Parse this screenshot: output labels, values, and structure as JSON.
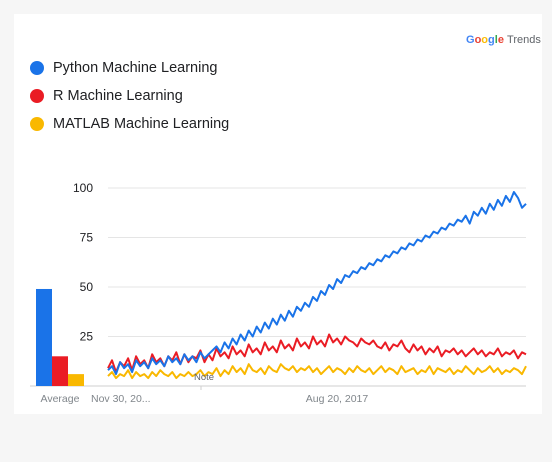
{
  "brand": {
    "logo_text": "Google",
    "product_text": "Trends"
  },
  "colors": {
    "python": "#1a73e8",
    "r": "#ea1c24",
    "matlab": "#f9b800",
    "grid": "#e5e5e5"
  },
  "chart_data": {
    "type": "line",
    "y_ticks": [
      "100",
      "75",
      "50",
      "25"
    ],
    "ylim": [
      0,
      100
    ],
    "x_tick_labels": [
      "Nov 30, 20...",
      "Aug 20, 2017"
    ],
    "average_label": "Average",
    "note_label": "Note",
    "legend_position": "top-left",
    "grid": true,
    "averages": [
      {
        "name": "Python Machine Learning",
        "value": 49
      },
      {
        "name": "R Machine Learning",
        "value": 15
      },
      {
        "name": "MATLAB Machine Learning",
        "value": 6
      }
    ],
    "series": [
      {
        "name": "Python Machine Learning",
        "values": [
          8,
          10,
          6,
          12,
          9,
          11,
          7,
          13,
          10,
          12,
          9,
          14,
          11,
          13,
          10,
          15,
          12,
          14,
          11,
          16,
          13,
          15,
          12,
          17,
          14,
          16,
          18,
          20,
          17,
          22,
          19,
          24,
          21,
          26,
          23,
          28,
          25,
          30,
          27,
          32,
          29,
          34,
          31,
          36,
          33,
          38,
          35,
          40,
          38,
          42,
          40,
          45,
          43,
          48,
          46,
          51,
          49,
          54,
          52,
          56,
          55,
          58,
          57,
          60,
          59,
          62,
          61,
          64,
          63,
          66,
          65,
          68,
          67,
          70,
          69,
          72,
          71,
          74,
          73,
          76,
          75,
          78,
          77,
          80,
          79,
          82,
          81,
          84,
          83,
          86,
          82,
          88,
          86,
          90,
          87,
          92,
          89,
          94,
          91,
          96,
          93,
          98,
          95,
          90,
          92
        ]
      },
      {
        "name": "R Machine Learning",
        "values": [
          9,
          13,
          7,
          12,
          10,
          14,
          8,
          15,
          11,
          13,
          9,
          16,
          12,
          14,
          10,
          15,
          13,
          17,
          11,
          16,
          12,
          15,
          14,
          18,
          12,
          16,
          13,
          19,
          15,
          17,
          14,
          20,
          16,
          18,
          15,
          21,
          17,
          19,
          16,
          22,
          18,
          20,
          17,
          23,
          19,
          21,
          18,
          24,
          20,
          22,
          19,
          25,
          21,
          23,
          20,
          26,
          22,
          24,
          21,
          25,
          23,
          22,
          20,
          24,
          22,
          21,
          23,
          20,
          19,
          22,
          18,
          21,
          20,
          23,
          19,
          17,
          21,
          18,
          20,
          16,
          19,
          17,
          20,
          15,
          18,
          17,
          19,
          16,
          18,
          15,
          17,
          19,
          16,
          18,
          15,
          17,
          16,
          19,
          15,
          17,
          16,
          18,
          14,
          17,
          16
        ]
      },
      {
        "name": "MATLAB Machine Learning",
        "values": [
          5,
          7,
          4,
          6,
          5,
          8,
          4,
          7,
          5,
          6,
          4,
          7,
          5,
          8,
          6,
          5,
          7,
          4,
          6,
          5,
          7,
          5,
          6,
          8,
          5,
          7,
          6,
          9,
          5,
          8,
          6,
          10,
          7,
          9,
          6,
          11,
          8,
          7,
          9,
          6,
          10,
          8,
          7,
          11,
          9,
          8,
          10,
          7,
          9,
          8,
          10,
          7,
          9,
          6,
          8,
          10,
          7,
          9,
          8,
          6,
          9,
          7,
          10,
          8,
          7,
          9,
          6,
          8,
          10,
          7,
          9,
          8,
          6,
          10,
          7,
          8,
          9,
          6,
          8,
          7,
          10,
          6,
          9,
          8,
          7,
          9,
          6,
          8,
          7,
          10,
          8,
          6,
          9,
          7,
          8,
          10,
          7,
          9,
          6,
          8,
          7,
          9,
          8,
          6,
          10
        ]
      }
    ]
  }
}
